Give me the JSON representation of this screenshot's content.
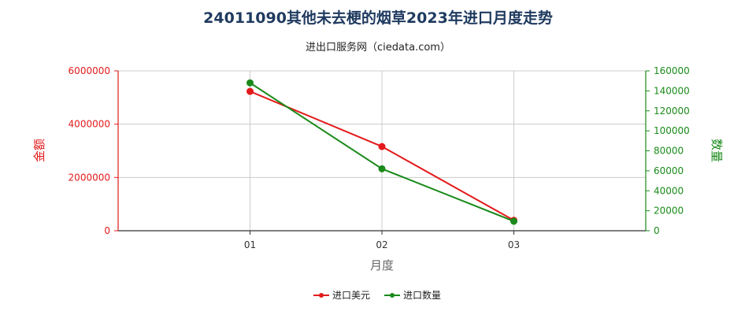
{
  "title": "24011090其他未去梗的烟草2023年进口月度走势",
  "subtitle": "进出口服务网（ciedata.com）",
  "chart_data": {
    "type": "line",
    "categories": [
      "01",
      "02",
      "03"
    ],
    "xlabel": "月度",
    "ylabel_left": "金额",
    "ylabel_right": "数量",
    "ylim_left": [
      0,
      6000000
    ],
    "ylim_right": [
      0,
      160000
    ],
    "yticks_left": [
      "0",
      "2000000",
      "4000000",
      "6000000"
    ],
    "yticks_right": [
      "0",
      "20000",
      "40000",
      "60000",
      "80000",
      "100000",
      "120000",
      "140000",
      "160000"
    ],
    "grid": true,
    "legend_position": "bottom",
    "series": [
      {
        "name": "进口美元",
        "axis": "left",
        "color": "#e31a1c",
        "values": [
          5230000,
          3160000,
          390000
        ]
      },
      {
        "name": "进口数量",
        "axis": "right",
        "color": "#1a8a1a",
        "values": [
          148000,
          62000,
          9500
        ]
      }
    ],
    "colors": {
      "left_axis": "#e31a1c",
      "right_axis": "#1a8a1a",
      "grid": "#cccccc"
    }
  }
}
